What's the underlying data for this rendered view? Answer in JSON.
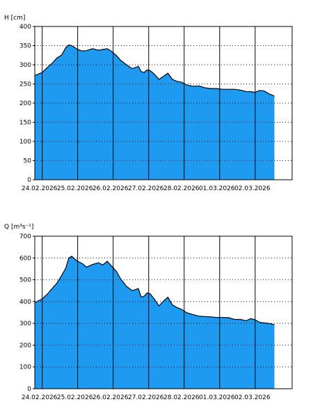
{
  "fill_color": "#1e9bf0",
  "chart_data": [
    {
      "type": "area",
      "ylabel": "H [cm]",
      "ylim": [
        0,
        400
      ],
      "yticks": [
        0,
        50,
        100,
        150,
        200,
        250,
        300,
        350,
        400
      ],
      "xlim": [
        "2026-02-23T19:00",
        "2026-03-03T01:00"
      ],
      "xticks": [
        "24.02.2026",
        "25.02.2026",
        "26.02.2026",
        "27.02.2026",
        "28.02.2026",
        "01.03.2026",
        "02.03.2026"
      ],
      "grid": true,
      "x": [
        "2026-02-23T19:00",
        "2026-02-24T00:00",
        "2026-02-24T04:00",
        "2026-02-24T07:00",
        "2026-02-24T10:00",
        "2026-02-24T13:00",
        "2026-02-24T16:00",
        "2026-02-24T18:00",
        "2026-02-24T20:00",
        "2026-02-24T22:00",
        "2026-02-25T00:00",
        "2026-02-25T03:00",
        "2026-02-25T06:00",
        "2026-02-25T10:00",
        "2026-02-25T14:00",
        "2026-02-25T17:00",
        "2026-02-25T20:00",
        "2026-02-25T23:00",
        "2026-02-26T02:00",
        "2026-02-26T05:00",
        "2026-02-26T09:00",
        "2026-02-26T13:00",
        "2026-02-26T17:00",
        "2026-02-26T19:00",
        "2026-02-26T21:00",
        "2026-02-26T23:00",
        "2026-02-27T01:00",
        "2026-02-27T04:00",
        "2026-02-27T07:00",
        "2026-02-27T10:00",
        "2026-02-27T13:00",
        "2026-02-27T16:00",
        "2026-02-27T19:00",
        "2026-02-27T22:00",
        "2026-02-28T02:00",
        "2026-02-28T06:00",
        "2026-02-28T10:00",
        "2026-02-28T14:00",
        "2026-02-28T18:00",
        "2026-02-28T22:00",
        "2026-03-01T02:00",
        "2026-03-01T06:00",
        "2026-03-01T10:00",
        "2026-03-01T14:00",
        "2026-03-01T18:00",
        "2026-03-01T21:00",
        "2026-03-02T00:00",
        "2026-03-02T03:00",
        "2026-03-02T06:00",
        "2026-03-02T09:00",
        "2026-03-02T12:00",
        "2026-03-02T13:00"
      ],
      "values": [
        272,
        280,
        295,
        305,
        318,
        325,
        345,
        352,
        350,
        345,
        340,
        336,
        337,
        342,
        338,
        340,
        342,
        335,
        325,
        312,
        300,
        290,
        296,
        282,
        280,
        287,
        285,
        275,
        262,
        270,
        278,
        262,
        257,
        255,
        247,
        244,
        245,
        240,
        238,
        238,
        236,
        236,
        236,
        234,
        230,
        230,
        228,
        233,
        232,
        225,
        220,
        218
      ]
    },
    {
      "type": "area",
      "ylabel": "Q [m³s⁻¹]",
      "ylim": [
        0,
        700
      ],
      "yticks": [
        0,
        100,
        200,
        300,
        400,
        500,
        600,
        700
      ],
      "xlim": [
        "2026-02-23T19:00",
        "2026-03-03T01:00"
      ],
      "xticks": [
        "24.02.2026",
        "25.02.2026",
        "26.02.2026",
        "27.02.2026",
        "28.02.2026",
        "01.03.2026",
        "02.03.2026"
      ],
      "grid": true,
      "x": [
        "2026-02-23T19:00",
        "2026-02-24T00:00",
        "2026-02-24T04:00",
        "2026-02-24T07:00",
        "2026-02-24T10:00",
        "2026-02-24T13:00",
        "2026-02-24T16:00",
        "2026-02-24T18:00",
        "2026-02-24T20:00",
        "2026-02-24T22:00",
        "2026-02-25T00:00",
        "2026-02-25T03:00",
        "2026-02-25T06:00",
        "2026-02-25T10:00",
        "2026-02-25T14:00",
        "2026-02-25T17:00",
        "2026-02-25T20:00",
        "2026-02-25T23:00",
        "2026-02-26T02:00",
        "2026-02-26T05:00",
        "2026-02-26T09:00",
        "2026-02-26T13:00",
        "2026-02-26T17:00",
        "2026-02-26T19:00",
        "2026-02-26T21:00",
        "2026-02-26T23:00",
        "2026-02-27T01:00",
        "2026-02-27T04:00",
        "2026-02-27T07:00",
        "2026-02-27T10:00",
        "2026-02-27T13:00",
        "2026-02-27T16:00",
        "2026-02-27T19:00",
        "2026-02-27T22:00",
        "2026-02-28T02:00",
        "2026-02-28T06:00",
        "2026-02-28T10:00",
        "2026-02-28T14:00",
        "2026-02-28T18:00",
        "2026-02-28T22:00",
        "2026-03-01T02:00",
        "2026-03-01T06:00",
        "2026-03-01T10:00",
        "2026-03-01T14:00",
        "2026-03-01T18:00",
        "2026-03-01T21:00",
        "2026-03-02T00:00",
        "2026-03-02T03:00",
        "2026-03-02T06:00",
        "2026-03-02T09:00",
        "2026-03-02T12:00",
        "2026-03-02T13:00"
      ],
      "values": [
        395,
        412,
        438,
        462,
        485,
        518,
        555,
        600,
        608,
        595,
        585,
        575,
        558,
        570,
        578,
        568,
        585,
        562,
        540,
        505,
        470,
        450,
        460,
        420,
        425,
        440,
        436,
        410,
        380,
        402,
        420,
        385,
        373,
        365,
        348,
        340,
        333,
        331,
        330,
        327,
        327,
        326,
        318,
        318,
        312,
        322,
        316,
        305,
        302,
        300,
        296,
        293
      ]
    }
  ]
}
